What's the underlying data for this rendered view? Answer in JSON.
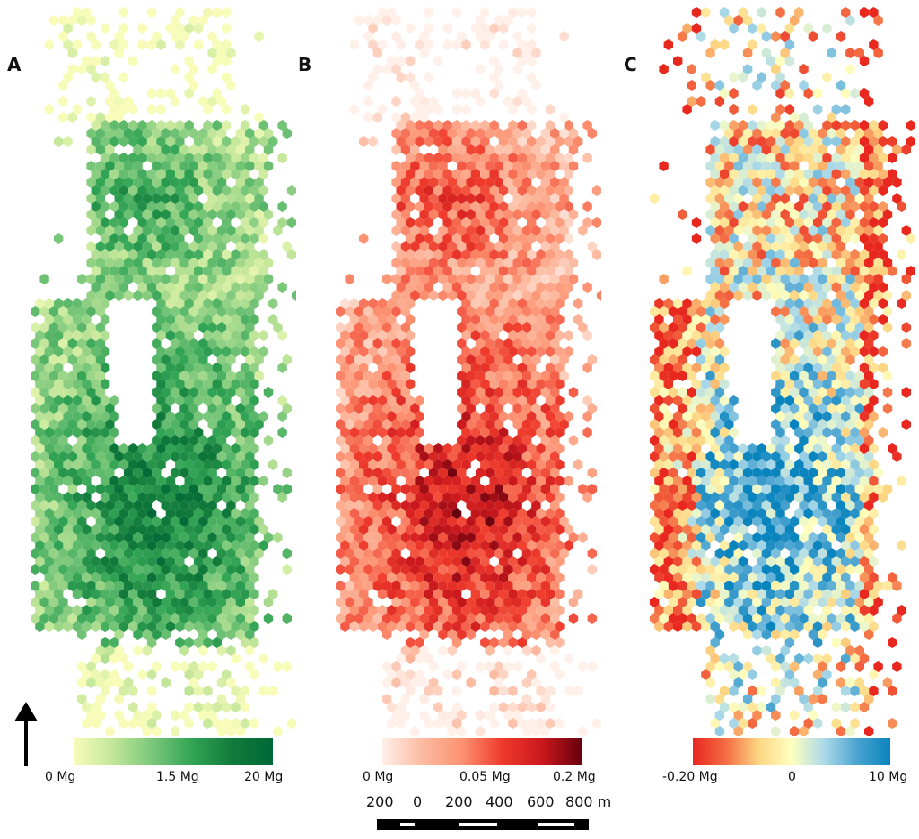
{
  "panels": [
    {
      "letter": "A",
      "ramp": [
        "#f7fcb9",
        "#c2e699",
        "#78c679",
        "#31a354",
        "#117a3a",
        "#006837"
      ],
      "legend": {
        "min": "0 Mg",
        "mid": "1.5 Mg",
        "max": "20 Mg"
      }
    },
    {
      "letter": "B",
      "ramp": [
        "#fff0ea",
        "#fcbba1",
        "#fc9272",
        "#ef3b2c",
        "#cb181d",
        "#67000d"
      ],
      "legend": {
        "min": "0 Mg",
        "mid": "0.05 Mg",
        "max": "0.2 Mg"
      }
    },
    {
      "letter": "C",
      "ramp": [
        "#e8271f",
        "#f46d43",
        "#fdd683",
        "#ffffbf",
        "#abd9e9",
        "#4aa3d0",
        "#0a84bd"
      ],
      "legend": {
        "min": "-0.20 Mg",
        "mid": "0",
        "max": "10 Mg"
      }
    }
  ],
  "scale_bar": {
    "labels": [
      "200",
      "0",
      "200",
      "400",
      "600",
      "800 m"
    ]
  },
  "north_arrow": {
    "icon": "north-arrow-icon"
  }
}
